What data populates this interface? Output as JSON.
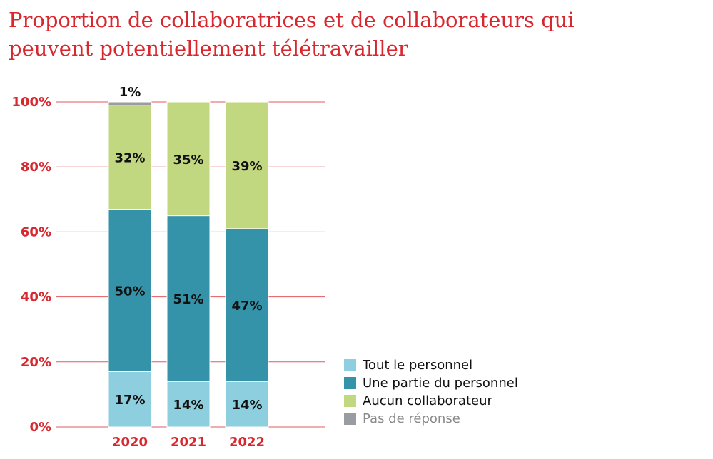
{
  "chart_data": {
    "type": "bar",
    "stacked": true,
    "title": "Proportion de collaboratrices et de collaborateurs qui peuvent potentiellement télétravailler",
    "categories": [
      "2020",
      "2021",
      "2022"
    ],
    "ylim": [
      0,
      100
    ],
    "yticks": [
      "0%",
      "20%",
      "40%",
      "60%",
      "80%",
      "100%"
    ],
    "ytick_values": [
      0,
      20,
      40,
      60,
      80,
      100
    ],
    "grid": true,
    "legend_position": "right-bottom",
    "series": [
      {
        "name": "Tout le personnel",
        "color": "#8ecfdf",
        "values": [
          17,
          14,
          14
        ],
        "labels": [
          "17%",
          "14%",
          "14%"
        ]
      },
      {
        "name": "Une partie du personnel",
        "color": "#3493a9",
        "values": [
          50,
          51,
          47
        ],
        "labels": [
          "50%",
          "51%",
          "47%"
        ]
      },
      {
        "name": "Aucun collaborateur",
        "color": "#c2d880",
        "values": [
          32,
          35,
          39
        ],
        "labels": [
          "32%",
          "35%",
          "39%"
        ]
      },
      {
        "name": "Pas de réponse",
        "color": "#999ca1",
        "values": [
          1,
          0,
          0
        ],
        "labels": [
          "1%",
          "",
          ""
        ]
      }
    ]
  }
}
